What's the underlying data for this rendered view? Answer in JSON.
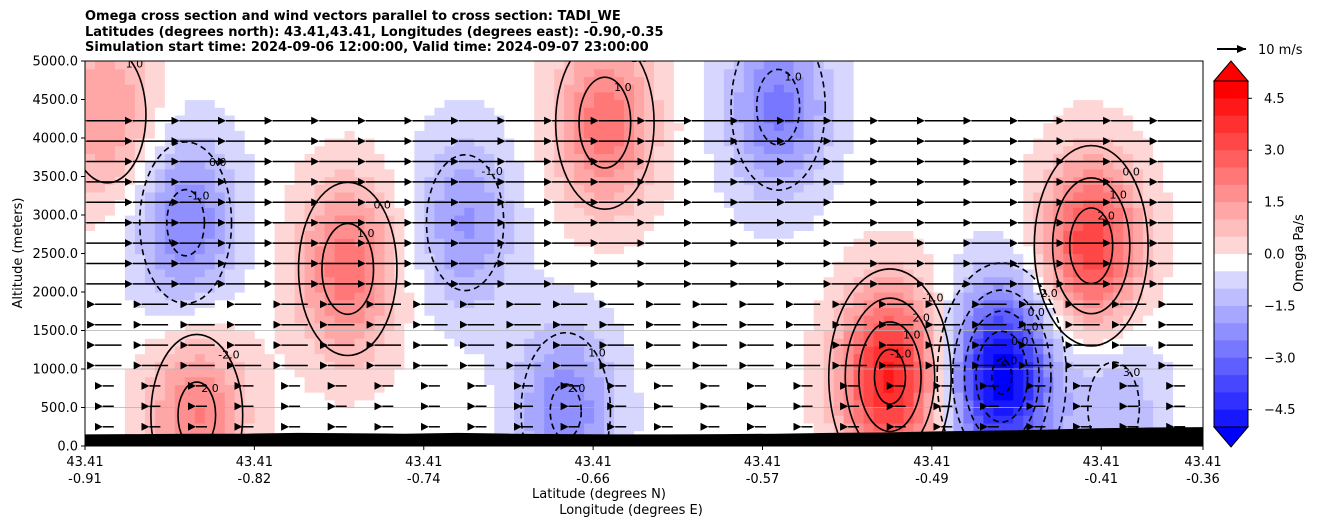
{
  "title": {
    "line1": "Omega cross section and wind vectors parallel to cross section: TADI_WE",
    "line2": "Latitudes (degrees north): 43.41,43.41, Longitudes (degrees east): -0.90,-0.35",
    "line3": "Simulation start time: 2024-09-06 12:00:00, Valid time: 2024-09-07 23:00:00"
  },
  "wind_key": {
    "label": "10 m/s"
  },
  "colors": {
    "positive": "#ff0000",
    "negative": "#0000ff",
    "neutral": "#ffffff",
    "terrain": "#000000"
  },
  "chart_data": {
    "type": "heatmap",
    "xlabel": "Latitude (degrees N)",
    "xlabel2": "Longitude (degrees E)",
    "ylabel": "Altitude (meters)",
    "ylim": [
      0,
      5000
    ],
    "yticks": [
      "0.0",
      "500.0",
      "1000.0",
      "1500.0",
      "2000.0",
      "2500.0",
      "3000.0",
      "3500.0",
      "4000.0",
      "4500.0",
      "5000.0"
    ],
    "xticks": [
      {
        "lat": "43.41",
        "lon": "-0.91"
      },
      {
        "lat": "43.41",
        "lon": "-0.82"
      },
      {
        "lat": "43.41",
        "lon": "-0.74"
      },
      {
        "lat": "43.41",
        "lon": "-0.66"
      },
      {
        "lat": "43.41",
        "lon": "-0.57"
      },
      {
        "lat": "43.41",
        "lon": "-0.49"
      },
      {
        "lat": "43.41",
        "lon": "-0.41"
      },
      {
        "lat": "43.41",
        "lon": "-0.36"
      }
    ],
    "colorbar": {
      "label": "Omega Pa/s",
      "range": [
        -5,
        5
      ],
      "ticks": [
        "-4.5",
        "-3.0",
        "-1.5",
        "0.0",
        "1.5",
        "3.0",
        "4.5"
      ]
    },
    "omega_centers": [
      {
        "x": 0.02,
        "z": 4300,
        "omega": 1.8
      },
      {
        "x": 0.09,
        "z": 2900,
        "omega": -2.3
      },
      {
        "x": 0.1,
        "z": 400,
        "omega": 2.3
      },
      {
        "x": 0.235,
        "z": 2300,
        "omega": 2.6
      },
      {
        "x": 0.34,
        "z": 2900,
        "omega": -1.8
      },
      {
        "x": 0.43,
        "z": 450,
        "omega": -2.2
      },
      {
        "x": 0.465,
        "z": 4200,
        "omega": 2.6
      },
      {
        "x": 0.62,
        "z": 4400,
        "omega": -2.4
      },
      {
        "x": 0.72,
        "z": 900,
        "omega": 4.4
      },
      {
        "x": 0.82,
        "z": 900,
        "omega": -5.2
      },
      {
        "x": 0.9,
        "z": 2600,
        "omega": 3.6
      },
      {
        "x": 0.92,
        "z": 500,
        "omega": -1.3
      }
    ],
    "contour_labels": [
      "1.0",
      "0.0",
      "-1.0",
      "-2.0",
      "2.0",
      "0.0",
      "1.0",
      "-1.0",
      "1.0",
      "2.0",
      "1.0",
      "1.0",
      "-2.0",
      "1.0",
      "-1.0",
      "2.0",
      "1.0",
      "-1.0",
      "-2.0",
      "0.0",
      "-1.0",
      "0.0",
      "2.0",
      "0.0",
      "1.0",
      "2.0",
      "3.0",
      "4.0",
      "0.0",
      "-3.0",
      "-4.0",
      "-5.0",
      "-1.0",
      "-1.0",
      "0.0",
      "3.0",
      "1.0",
      "-1.0",
      "-1.0",
      "0.0",
      "1.0"
    ]
  }
}
